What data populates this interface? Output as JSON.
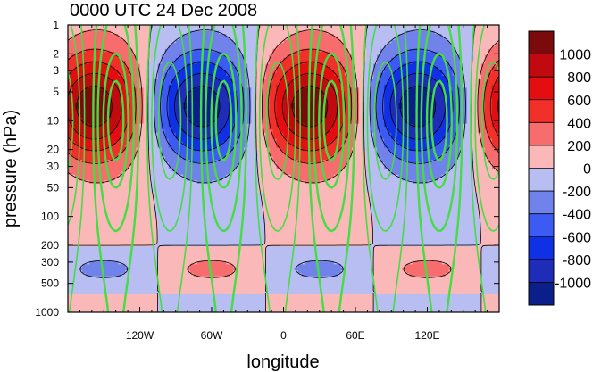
{
  "chart_data": {
    "type": "heatmap",
    "title": "0000 UTC 24 Dec 2008",
    "xlabel": "longitude",
    "ylabel": "pressure (hPa)",
    "xlim": [
      -180,
      180
    ],
    "ylim": [
      1000,
      1
    ],
    "y_scale": "log",
    "x_ticks": [
      {
        "value": -120,
        "label": "120W"
      },
      {
        "value": -60,
        "label": "60W"
      },
      {
        "value": 0,
        "label": "0"
      },
      {
        "value": 60,
        "label": "60E"
      },
      {
        "value": 120,
        "label": "120E"
      }
    ],
    "y_ticks": [
      {
        "value": 1,
        "label": "1"
      },
      {
        "value": 2,
        "label": "2"
      },
      {
        "value": 3,
        "label": "3"
      },
      {
        "value": 5,
        "label": "5"
      },
      {
        "value": 10,
        "label": "10"
      },
      {
        "value": 20,
        "label": "20"
      },
      {
        "value": 30,
        "label": "30"
      },
      {
        "value": 50,
        "label": "50"
      },
      {
        "value": 100,
        "label": "100"
      },
      {
        "value": 200,
        "label": "200"
      },
      {
        "value": 300,
        "label": "300"
      },
      {
        "value": 500,
        "label": "500"
      },
      {
        "value": 1000,
        "label": "1000"
      }
    ],
    "colorbar": {
      "levels": [
        -1000,
        -800,
        -600,
        -400,
        -200,
        0,
        200,
        400,
        600,
        800,
        1000
      ],
      "labels": [
        "-1000",
        "-800",
        "-600",
        "-400",
        "-200",
        "0",
        "200",
        "400",
        "600",
        "800",
        "1000"
      ],
      "colors": [
        "#0a1f8a",
        "#1f2cb8",
        "#1030e6",
        "#3c5bf2",
        "#7183ea",
        "#b8bef2",
        "#fbb8b8",
        "#f76d6d",
        "#f2302a",
        "#e40d10",
        "#c10a0f",
        "#7a0a0c"
      ]
    },
    "overlay": {
      "type": "contour",
      "color": "#44dd44",
      "negative_style": "dashed"
    }
  }
}
